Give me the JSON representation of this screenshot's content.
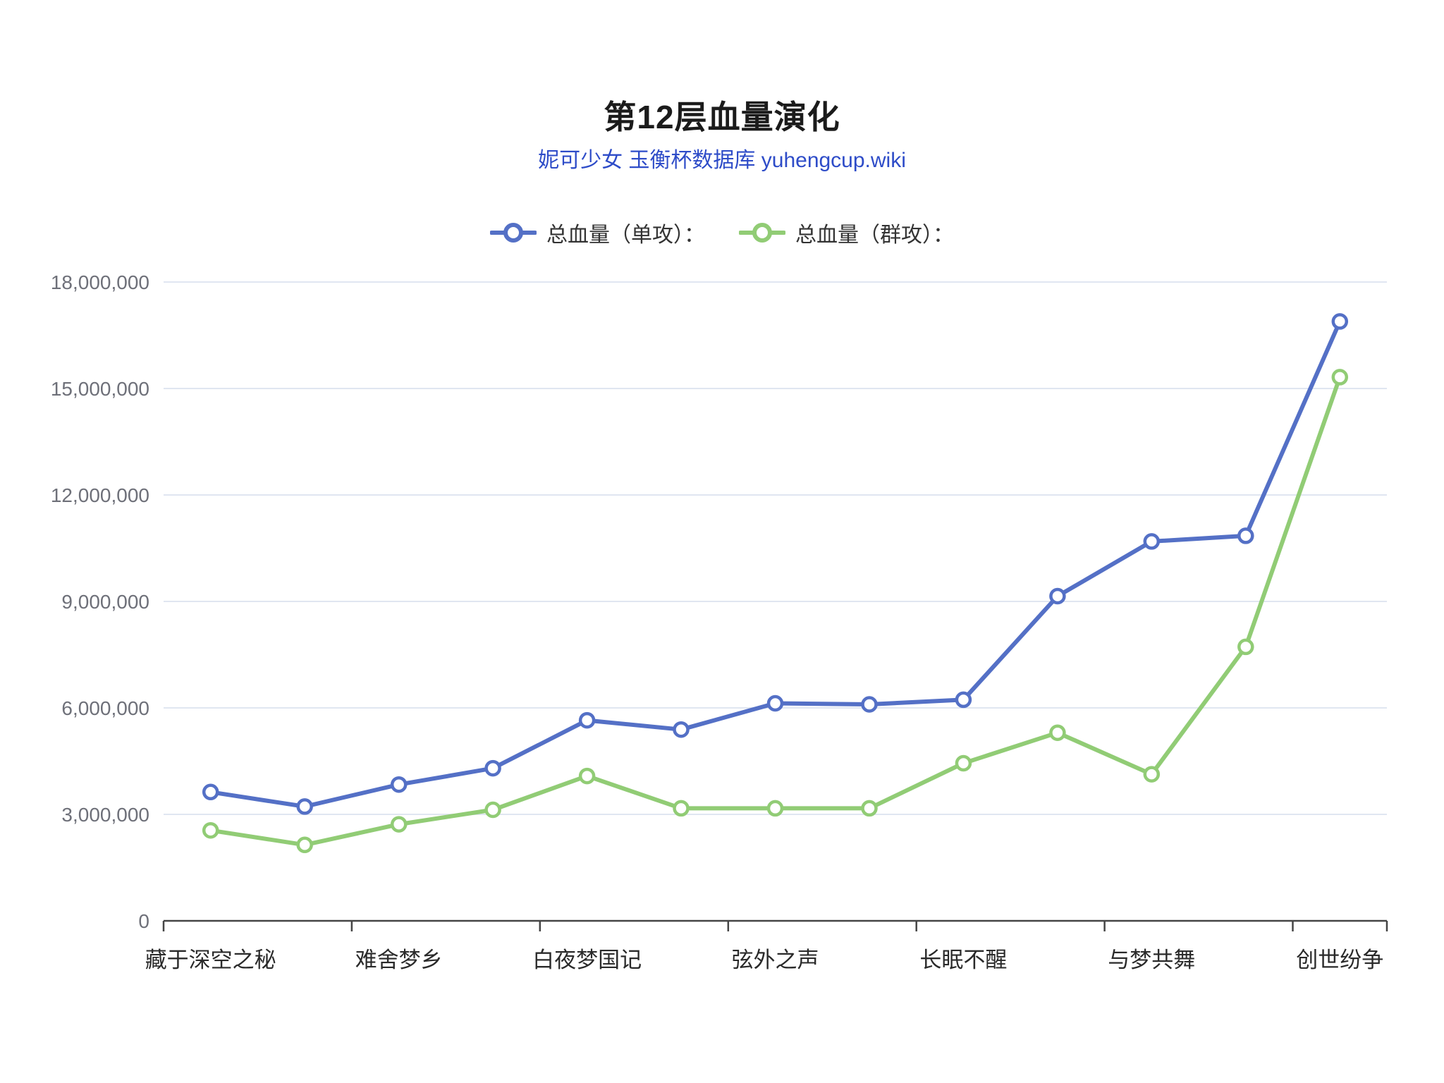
{
  "title": "第12层血量演化",
  "subtitle": "妮可少女 玉衡杯数据库 yuhengcup.wiki",
  "legend": {
    "items": [
      {
        "label": "总血量（单攻）：",
        "color": "#5470C6"
      },
      {
        "label": "总血量（群攻）：",
        "color": "#91CC75"
      }
    ]
  },
  "colors": {
    "title_text": "#1b1b1b",
    "subtitle_link": "#2e4cc8",
    "legend_text": "#333333",
    "gridline": "#E0E6F1",
    "axis_line": "#454545",
    "y_axis_label": "#6E7079",
    "x_axis_label": "#2a2a2a",
    "series_blue": "#5470C6",
    "series_green": "#91CC75",
    "marker_fill": "#ffffff"
  },
  "chart_data": {
    "type": "line",
    "title": "第12层血量演化",
    "subtitle": "妮可少女 玉衡杯数据库 yuhengcup.wiki",
    "categories": [
      "藏于深空之秘",
      "难舍梦乡",
      "白夜梦国记",
      "弦外之声",
      "长眠不醒",
      "与梦共舞",
      "创世纷争"
    ],
    "category_point_indices": [
      0,
      2,
      4,
      6,
      8,
      10,
      12
    ],
    "points_per_series": 13,
    "x_tick_every_points": 2,
    "series": [
      {
        "name": "总血量（单攻）",
        "color": "#5470C6",
        "values": [
          3630000,
          3220000,
          3840000,
          4300000,
          5650000,
          5390000,
          6130000,
          6100000,
          6230000,
          9150000,
          10690000,
          10850000,
          16890000
        ]
      },
      {
        "name": "总血量（群攻）",
        "color": "#91CC75",
        "values": [
          2550000,
          2140000,
          2720000,
          3130000,
          4080000,
          3170000,
          3170000,
          3170000,
          4440000,
          5300000,
          4130000,
          7720000,
          15320000
        ]
      }
    ],
    "ylim": [
      0,
      18000000
    ],
    "y_tick_step": 3000000,
    "y_tick_labels": [
      "0",
      "3,000,000",
      "6,000,000",
      "9,000,000",
      "12,000,000",
      "15,000,000",
      "18,000,000"
    ],
    "grid": true,
    "legend_position": "top"
  }
}
